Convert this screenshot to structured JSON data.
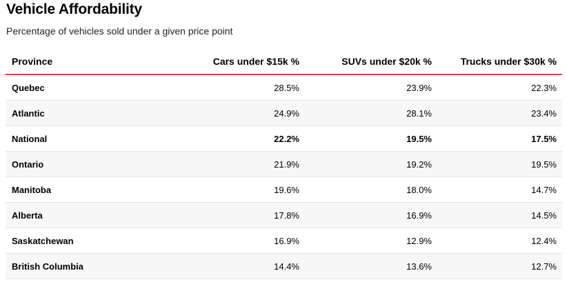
{
  "title": "Vehicle Affordability",
  "subtitle": "Percentage of vehicles sold under a given price point",
  "table": {
    "columns": [
      "Province",
      "Cars under $15k %",
      "SUVs under $20k %",
      "Trucks under $30k %"
    ],
    "rows": [
      {
        "province": "Quebec",
        "cars": "28.5%",
        "suvs": "23.9%",
        "trucks": "22.3%",
        "bold": false
      },
      {
        "province": "Atlantic",
        "cars": "24.9%",
        "suvs": "28.1%",
        "trucks": "23.4%",
        "bold": false
      },
      {
        "province": "National",
        "cars": "22.2%",
        "suvs": "19.5%",
        "trucks": "17.5%",
        "bold": true
      },
      {
        "province": "Ontario",
        "cars": "21.9%",
        "suvs": "19.2%",
        "trucks": "19.5%",
        "bold": false
      },
      {
        "province": "Manitoba",
        "cars": "19.6%",
        "suvs": "18.0%",
        "trucks": "14.7%",
        "bold": false
      },
      {
        "province": "Alberta",
        "cars": "17.8%",
        "suvs": "16.9%",
        "trucks": "14.5%",
        "bold": false
      },
      {
        "province": "Saskatchewan",
        "cars": "16.9%",
        "suvs": "12.9%",
        "trucks": "12.4%",
        "bold": false
      },
      {
        "province": "British Columbia",
        "cars": "14.4%",
        "suvs": "13.6%",
        "trucks": "12.7%",
        "bold": false
      }
    ]
  },
  "colors": {
    "header_rule": "#e0474c",
    "row_alt": "#f7f7f7",
    "row_divider": "#e6e6e6"
  }
}
